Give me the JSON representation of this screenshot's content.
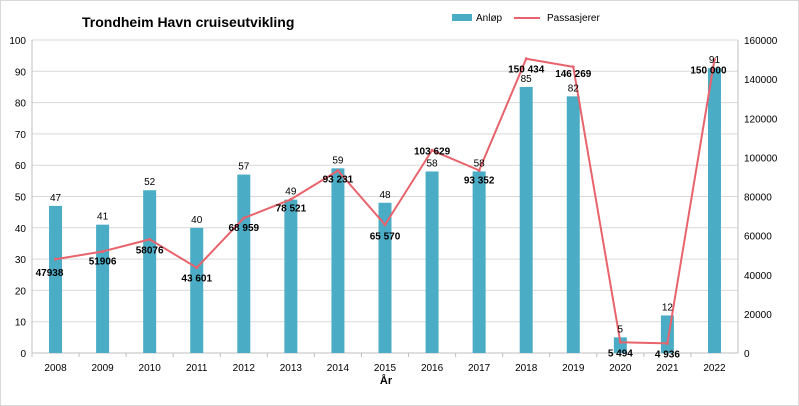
{
  "chart_data": {
    "type": "bar",
    "title": "Trondheim Havn cruiseutvikling",
    "xlabel": "År",
    "ylabel": "",
    "y2label": "",
    "categories": [
      "2008",
      "2009",
      "2010",
      "2011",
      "2012",
      "2013",
      "2014",
      "2015",
      "2016",
      "2017",
      "2018",
      "2019",
      "2020",
      "2021",
      "2022"
    ],
    "ylim": [
      0,
      100
    ],
    "yticks": [
      0,
      10,
      20,
      30,
      40,
      50,
      60,
      70,
      80,
      90,
      100
    ],
    "y2lim": [
      0,
      160000
    ],
    "y2ticks": [
      0,
      20000,
      40000,
      60000,
      80000,
      100000,
      120000,
      140000,
      160000
    ],
    "grid": true,
    "legend_position": "top-right",
    "series": [
      {
        "name": "Anløp",
        "type": "bar",
        "axis": "left",
        "color": "#4BACC6",
        "values": [
          47,
          41,
          52,
          40,
          57,
          49,
          59,
          48,
          58,
          58,
          85,
          82,
          5,
          12,
          91
        ],
        "labels": [
          "47",
          "41",
          "52",
          "40",
          "57",
          "49",
          "59",
          "48",
          "58",
          "58",
          "85",
          "82",
          "5",
          "12",
          "91"
        ]
      },
      {
        "name": "Passasjerer",
        "type": "line",
        "axis": "right",
        "color": "#E8636B",
        "values": [
          47938,
          51906,
          58076,
          43601,
          68959,
          78521,
          93231,
          65570,
          103629,
          93352,
          150434,
          146269,
          5494,
          4936,
          150000
        ],
        "labels": [
          "47938",
          "51906",
          "58076",
          "43 601",
          "68 959",
          "78 521",
          "93 231",
          "65 570",
          "103 629",
          "93 352",
          "150 434",
          "146 269",
          "5 494",
          "4 936",
          "150 000"
        ]
      }
    ]
  }
}
